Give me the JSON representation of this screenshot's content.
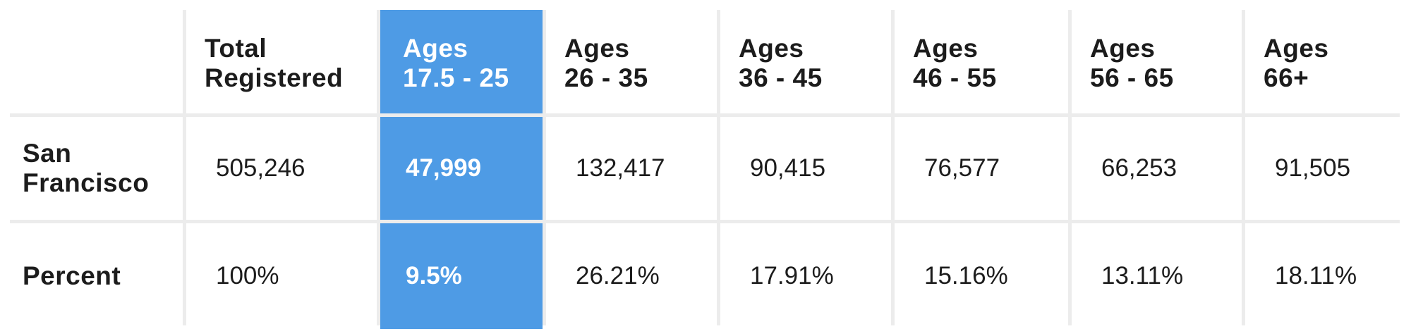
{
  "chart_data": {
    "type": "table",
    "highlight_color": "#4e9be5",
    "highlighted_column": "Ages\n17.5 - 25",
    "columns": [
      "",
      "Total\nRegistered",
      "Ages\n17.5 - 25",
      "Ages\n26 - 35",
      "Ages\n36 - 45",
      "Ages\n46 - 55",
      "Ages\n56 - 65",
      "Ages\n66+"
    ],
    "rows": [
      {
        "label": "San\nFrancisco",
        "values": [
          "505,246",
          "47,999",
          "132,417",
          "90,415",
          "76,577",
          "66,253",
          "91,505"
        ]
      },
      {
        "label": "Percent",
        "values": [
          "100%",
          "9.5%",
          "26.21%",
          "17.91%",
          "15.16%",
          "13.11%",
          "18.11%"
        ]
      }
    ]
  }
}
